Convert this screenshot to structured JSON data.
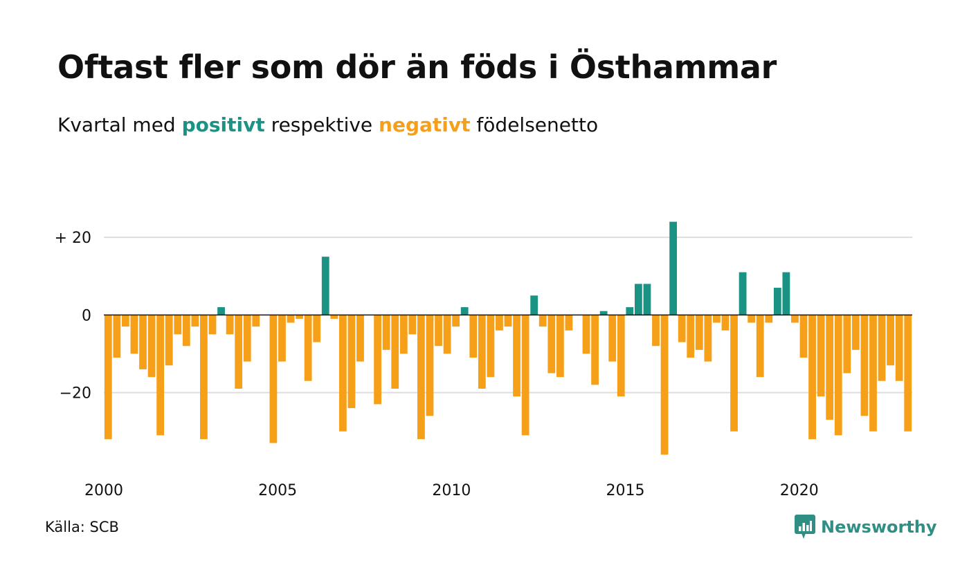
{
  "title": "Oftast fler som dör än föds i Östhammar",
  "subtitle": {
    "prefix": "Kvartal med ",
    "positive_word": "positivt",
    "middle": " respektive ",
    "negative_word": "negativt",
    "suffix": " födelsenetto"
  },
  "colors": {
    "positive": "#1b9384",
    "negative": "#f6a01a",
    "grid": "#dddddd",
    "zero_line": "#111111",
    "brand": "#2f8f84"
  },
  "source": "Källa: SCB",
  "brand": {
    "name": "Newsworthy",
    "icon": "bar-chart-speech-bubble-icon"
  },
  "chart_data": {
    "type": "bar",
    "x_start_year": 2000,
    "periods_per_year": 4,
    "ylim": [
      -37,
      25
    ],
    "grid": true,
    "y_ticks": [
      {
        "value": 20,
        "label": "+ 20"
      },
      {
        "value": 0,
        "label": "0"
      },
      {
        "value": -20,
        "label": "−20"
      }
    ],
    "x_ticks": [
      {
        "value": 2000,
        "label": "2000"
      },
      {
        "value": 2005,
        "label": "2005"
      },
      {
        "value": 2010,
        "label": "2010"
      },
      {
        "value": 2015,
        "label": "2015"
      },
      {
        "value": 2020,
        "label": "2020"
      }
    ],
    "values": [
      -32,
      -11,
      -3,
      -10,
      -14,
      -16,
      -31,
      -13,
      -5,
      -8,
      -3,
      -32,
      -5,
      2,
      -5,
      -19,
      -12,
      -3,
      0,
      -33,
      -12,
      -2,
      -1,
      -17,
      -7,
      15,
      -1,
      -30,
      -24,
      -12,
      0,
      -23,
      -9,
      -19,
      -10,
      -5,
      -32,
      -26,
      -8,
      -10,
      -3,
      2,
      -11,
      -19,
      -16,
      -4,
      -3,
      -21,
      -31,
      5,
      -3,
      -15,
      -16,
      -4,
      0,
      -10,
      -18,
      1,
      -12,
      -21,
      2,
      8,
      8,
      -8,
      -36,
      24,
      -7,
      -11,
      -9,
      -12,
      -2,
      -4,
      -30,
      11,
      -2,
      -16,
      -2,
      7,
      11,
      -2,
      -11,
      -32,
      -21,
      -27,
      -31,
      -15,
      -9,
      -26,
      -30,
      -17,
      -13,
      -17,
      -30
    ]
  }
}
